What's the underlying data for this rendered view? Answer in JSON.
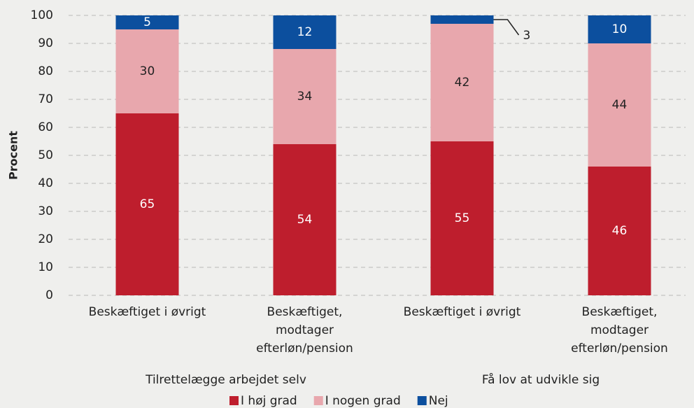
{
  "chart_data": {
    "type": "stacked_bar",
    "ylabel": "Procent",
    "categories": [
      [
        "Beskæftiget i øvrigt"
      ],
      [
        "Beskæftiget,",
        "modtager",
        "efterløn/pension"
      ],
      [
        "Beskæftiget i øvrigt"
      ],
      [
        "Beskæftiget,",
        "modtager",
        "efterløn/pension"
      ]
    ],
    "groups": [
      "Tilrettelægge arbejdet selv",
      "Få lov at udvikle sig"
    ],
    "series": [
      {
        "name": "I høj grad",
        "color": "#be1e2d",
        "label_color": "#ffffff",
        "values": [
          65,
          54,
          55,
          46
        ]
      },
      {
        "name": "I nogen grad",
        "color": "#e8a7ad",
        "label_color": "#222222",
        "values": [
          30,
          34,
          42,
          44
        ]
      },
      {
        "name": "Nej",
        "color": "#0c4f9e",
        "label_color": "#ffffff",
        "values": [
          5,
          12,
          3,
          10
        ]
      }
    ],
    "ylim": [
      0,
      100
    ],
    "yticks": [
      0,
      10,
      20,
      30,
      40,
      50,
      60,
      70,
      80,
      90,
      100
    ],
    "grid": true
  }
}
